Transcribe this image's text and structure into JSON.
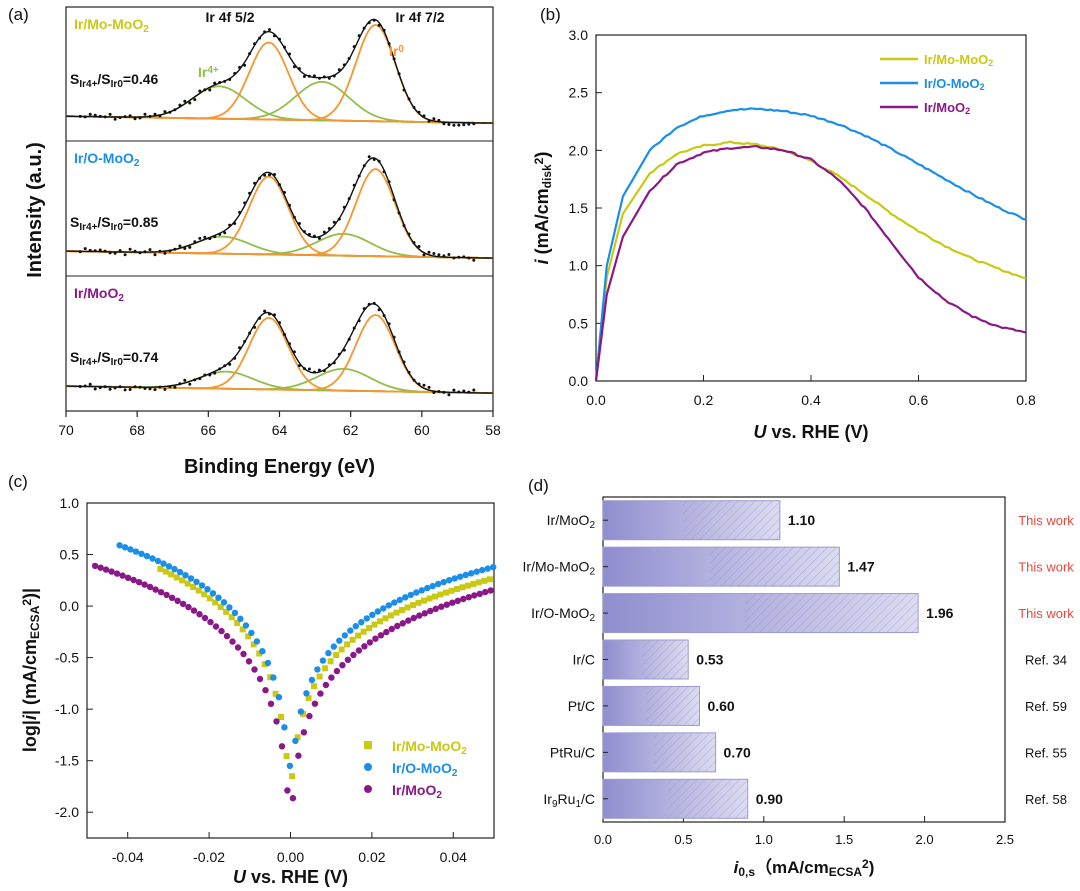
{
  "colors": {
    "mo": "#c9c913",
    "o": "#1a8ee8",
    "moo2": "#8a1887",
    "orange": "#f5962e",
    "green": "#8fbf4a",
    "red": "#f04a26",
    "black": "#111111",
    "bar": "#9b99d3",
    "refRed": "#e8473c"
  },
  "chart_data": [
    {
      "panel": "(a)",
      "type": "line",
      "xlabel": "Binding Energy (eV)",
      "ylabel": "Intensity (a.u.)",
      "xlim": [
        70,
        58
      ],
      "xticks": [
        "70",
        "68",
        "66",
        "64",
        "62",
        "60",
        "58"
      ],
      "peak_labels": {
        "f52": "Ir 4f 5/2",
        "f72": "Ir 4f 7/2",
        "ir4": "Ir",
        "ir4_sup": "4+",
        "ir0": "Ir",
        "ir0_sup": "0"
      },
      "ratio_text": {
        "s": "S",
        "ir4_sub": "Ir4+",
        "slash": "/",
        "ir0_sub": "Ir0"
      },
      "subpanels": [
        {
          "name": "Ir/Mo-MoO",
          "name_sub": "2",
          "ratio": "=0.46",
          "color_key": "mo",
          "components": {
            "ir0_a": [
              64.3,
              1.0
            ],
            "ir0_b": [
              61.3,
              1.25
            ],
            "ir4_a": [
              65.7,
              0.42
            ],
            "ir4_b": [
              62.8,
              0.5
            ]
          }
        },
        {
          "name": "Ir/O-MoO",
          "name_sub": "2",
          "ratio": "=0.85",
          "color_key": "o",
          "components": {
            "ir0_a": [
              64.3,
              1.0
            ],
            "ir0_b": [
              61.3,
              1.12
            ],
            "ir4_a": [
              65.6,
              0.22
            ],
            "ir4_b": [
              62.2,
              0.28
            ]
          }
        },
        {
          "name": "Ir/MoO",
          "name_sub": "2",
          "ratio": "=0.74",
          "color_key": "moo2",
          "components": {
            "ir0_a": [
              64.3,
              0.92
            ],
            "ir0_b": [
              61.3,
              0.98
            ],
            "ir4_a": [
              65.5,
              0.22
            ],
            "ir4_b": [
              62.2,
              0.28
            ]
          }
        }
      ]
    },
    {
      "panel": "(b)",
      "type": "line",
      "xlabel": "U vs. RHE (V)",
      "xlabel_u": "U",
      "xlabel_rest": " vs. RHE (V)",
      "ylabel": {
        "i": "i",
        "pre": " (mA/cm",
        "sub": "disk",
        "sup": "2",
        "post": ")"
      },
      "xlim": [
        0,
        0.8
      ],
      "ylim": [
        0,
        3.0
      ],
      "xticks": [
        "0.0",
        "0.2",
        "0.4",
        "0.6",
        "0.8"
      ],
      "yticks": [
        "0.0",
        "0.5",
        "1.0",
        "1.5",
        "2.0",
        "2.5",
        "3.0"
      ],
      "series": [
        {
          "name": "Ir/Mo-MoO",
          "sub": "2",
          "color_key": "mo",
          "x": [
            0,
            0.02,
            0.05,
            0.1,
            0.15,
            0.2,
            0.25,
            0.3,
            0.35,
            0.4,
            0.45,
            0.5,
            0.55,
            0.6,
            0.65,
            0.7,
            0.75,
            0.8
          ],
          "y": [
            0,
            0.9,
            1.45,
            1.8,
            1.97,
            2.04,
            2.07,
            2.05,
            2.0,
            1.91,
            1.78,
            1.62,
            1.45,
            1.3,
            1.17,
            1.06,
            0.97,
            0.89
          ]
        },
        {
          "name": "Ir/O-MoO",
          "sub": "2",
          "color_key": "o",
          "x": [
            0,
            0.02,
            0.05,
            0.1,
            0.15,
            0.2,
            0.25,
            0.3,
            0.35,
            0.4,
            0.45,
            0.5,
            0.55,
            0.6,
            0.65,
            0.7,
            0.75,
            0.8
          ],
          "y": [
            0,
            1.0,
            1.6,
            2.0,
            2.2,
            2.3,
            2.35,
            2.36,
            2.34,
            2.3,
            2.23,
            2.13,
            2.01,
            1.88,
            1.75,
            1.62,
            1.5,
            1.4
          ]
        },
        {
          "name": "Ir/MoO",
          "sub": "2",
          "color_key": "moo2",
          "x": [
            0,
            0.02,
            0.05,
            0.1,
            0.15,
            0.2,
            0.25,
            0.3,
            0.35,
            0.4,
            0.45,
            0.5,
            0.55,
            0.6,
            0.65,
            0.7,
            0.75,
            0.8
          ],
          "y": [
            0,
            0.75,
            1.25,
            1.65,
            1.88,
            1.98,
            2.02,
            2.03,
            2.0,
            1.92,
            1.75,
            1.5,
            1.2,
            0.9,
            0.7,
            0.56,
            0.47,
            0.42
          ]
        }
      ]
    },
    {
      "panel": "(c)",
      "type": "scatter",
      "xlabel_u": "U",
      "xlabel_rest": " vs. RHE (V)",
      "ylabel": {
        "pre": "log|",
        "i": "i",
        "mid": "| (mA/cm",
        "sub": "ECSA",
        "sup": "2",
        "post": ")|"
      },
      "xlim": [
        -0.05,
        0.05
      ],
      "ylim": [
        -2.25,
        1.0
      ],
      "xticks": [
        "-0.04",
        "-0.02",
        "0.00",
        "0.02",
        "0.04"
      ],
      "yticks": [
        "-2.0",
        "-1.5",
        "-1.0",
        "-0.5",
        "0.0",
        "0.5",
        "1.0"
      ],
      "series": [
        {
          "name": "Ir/Mo-MoO",
          "sub": "2",
          "color_key": "mo",
          "marker": "square",
          "xmin": -0.032,
          "xmax": 0.05,
          "peak": 0.36,
          "right": 0.27,
          "dip": -1.65
        },
        {
          "name": "Ir/O-MoO",
          "sub": "2",
          "color_key": "o",
          "marker": "circle",
          "xmin": -0.042,
          "xmax": 0.05,
          "peak": 0.59,
          "right": 0.38,
          "dip": -1.55
        },
        {
          "name": "Ir/MoO",
          "sub": "2",
          "color_key": "moo2",
          "marker": "circle",
          "xmin": -0.048,
          "xmax": 0.05,
          "peak": 0.39,
          "right": 0.16,
          "dip": -1.9
        }
      ]
    },
    {
      "panel": "(d)",
      "type": "bar",
      "xlabel": {
        "i": "i",
        "sub": "0,s",
        "pre": "（mA/cm",
        "sub2": "ECSA",
        "sup": "2",
        "post": ")"
      },
      "xlim": [
        0,
        2.5
      ],
      "xticks": [
        "0.0",
        "0.5",
        "1.0",
        "1.5",
        "2.0",
        "2.5"
      ],
      "categories": [
        {
          "label": "Ir/MoO",
          "sub": "2",
          "tail": "",
          "value": 1.1,
          "value_label": "1.10",
          "ref": "This work",
          "ref_red": true
        },
        {
          "label": "Ir/Mo-MoO",
          "sub": "2",
          "tail": "",
          "value": 1.47,
          "value_label": "1.47",
          "ref": "This work",
          "ref_red": true
        },
        {
          "label": "Ir/O-MoO",
          "sub": "2",
          "tail": "",
          "value": 1.96,
          "value_label": "1.96",
          "ref": "This work",
          "ref_red": true
        },
        {
          "label": "Ir/C",
          "sub": "",
          "tail": "",
          "value": 0.53,
          "value_label": "0.53",
          "ref": "Ref. 34",
          "ref_red": false
        },
        {
          "label": "Pt/C",
          "sub": "",
          "tail": "",
          "value": 0.6,
          "value_label": "0.60",
          "ref": "Ref. 59",
          "ref_red": false
        },
        {
          "label": "PtRu/C",
          "sub": "",
          "tail": "",
          "value": 0.7,
          "value_label": "0.70",
          "ref": "Ref. 55",
          "ref_red": false
        },
        {
          "label": "Ir",
          "sub": "9",
          "mid": "Ru",
          "sub2": "1",
          "tail": "/C",
          "value": 0.9,
          "value_label": "0.90",
          "ref": "Ref. 58",
          "ref_red": false
        }
      ]
    }
  ]
}
